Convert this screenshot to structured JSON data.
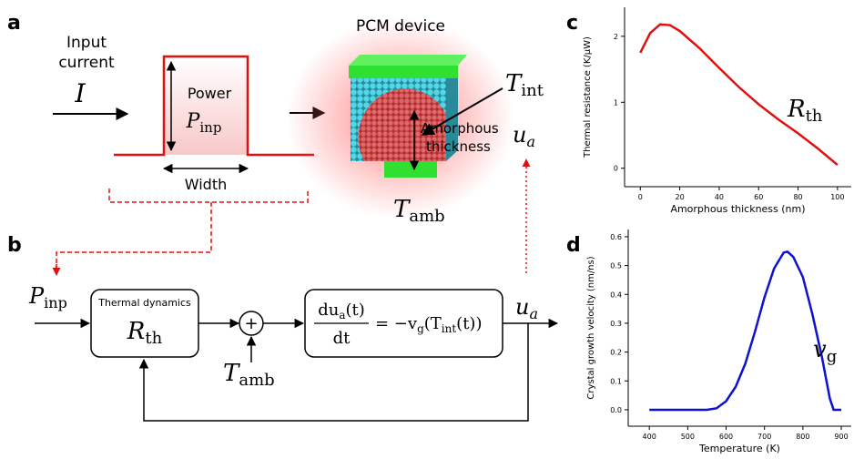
{
  "panels": {
    "a": "a",
    "b": "b",
    "c": "c",
    "d": "d"
  },
  "diagram": {
    "input_label": [
      "Input",
      "current"
    ],
    "input_symbol": "I",
    "pulse_power": "Power",
    "pulse_symbol": {
      "sym": "P",
      "sub": "inp"
    },
    "pulse_width": "Width",
    "device_title": "PCM device",
    "t_int": {
      "sym": "T",
      "sub": "int"
    },
    "amorphous": [
      "Amorphous",
      "thickness"
    ],
    "u_a_top": {
      "sym": "u",
      "sub": "a"
    },
    "t_amb_top": {
      "sym": "T",
      "sub": "amb"
    },
    "block_input": {
      "sym": "P",
      "sub": "inp"
    },
    "thermal_box": {
      "title": "Thermal dynamics",
      "sym": "R",
      "sub": "th"
    },
    "sum_sign": "+",
    "t_amb_bottom": {
      "sym": "T",
      "sub": "amb"
    },
    "equation": {
      "num": "du",
      "num_sub": "a",
      "num_tail": "(t)",
      "den": "dt",
      "rhs": "= −v",
      "rhs_sub": "g",
      "rhs_mid": "(T",
      "rhs_sub2": "int",
      "rhs_tail": "(t))"
    },
    "output": {
      "sym": "u",
      "sub": "a"
    }
  },
  "chart_data": [
    {
      "type": "line",
      "x_label": "Amorphous thickness (nm)",
      "y_label": "Thermal resistance (K/μW)",
      "curve_label": {
        "sym": "R",
        "sub": "th"
      },
      "series": [
        {
          "color": "#e01010",
          "x": [
            0,
            5,
            10,
            15,
            20,
            30,
            40,
            50,
            60,
            70,
            80,
            90,
            100
          ],
          "values": [
            1.75,
            2.05,
            2.18,
            2.17,
            2.08,
            1.82,
            1.52,
            1.23,
            0.97,
            0.74,
            0.53,
            0.3,
            0.05
          ]
        }
      ],
      "xlim": [
        -8,
        107
      ],
      "ylim": [
        -0.28,
        2.44
      ],
      "xticks": [
        0,
        20,
        40,
        60,
        80,
        100
      ],
      "yticks": [
        0,
        1,
        2
      ]
    },
    {
      "type": "line",
      "x_label": "Temperature (K)",
      "y_label": "Crystal growth velocity (nm/ns)",
      "curve_label": {
        "sym": "v",
        "sub": "g"
      },
      "series": [
        {
          "color": "#1010d0",
          "x": [
            400,
            500,
            550,
            575,
            600,
            625,
            650,
            675,
            700,
            725,
            750,
            760,
            775,
            800,
            825,
            850,
            870,
            880,
            900
          ],
          "values": [
            0,
            0,
            0,
            0.005,
            0.03,
            0.08,
            0.16,
            0.27,
            0.39,
            0.49,
            0.545,
            0.548,
            0.53,
            0.46,
            0.33,
            0.18,
            0.04,
            0,
            0
          ]
        }
      ],
      "xlim": [
        345,
        926
      ],
      "ylim": [
        -0.057,
        0.625
      ],
      "xticks": [
        400,
        500,
        600,
        700,
        800,
        900
      ],
      "yticks": [
        {
          "value": 0,
          "label": "0.0"
        },
        0.1,
        0.2,
        0.3,
        0.4,
        0.5,
        0.6
      ]
    }
  ]
}
